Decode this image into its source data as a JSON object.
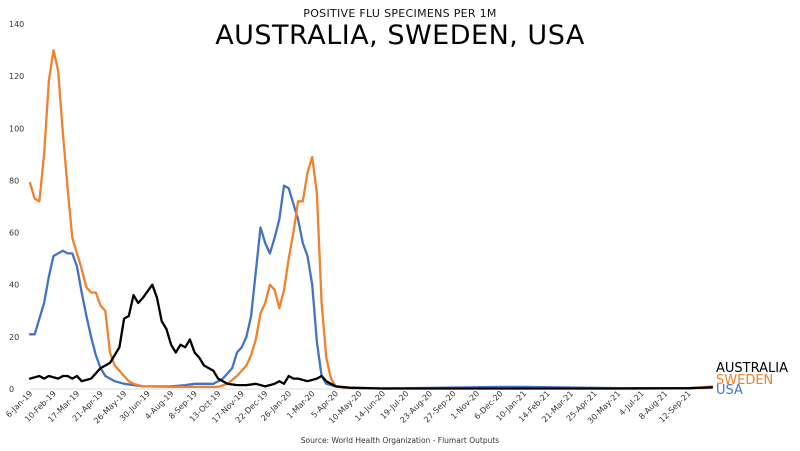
{
  "chart_data": {
    "type": "line",
    "subtitle": "POSITIVE FLU SPECIMENS PER 1M",
    "title": "AUSTRALIA, SWEDEN, USA",
    "source": "Source: World Health Organization - Flumart Outputs",
    "ylim": [
      0,
      140
    ],
    "yticks": [
      0,
      20,
      40,
      60,
      80,
      100,
      120,
      140
    ],
    "xlim": [
      "2019-01-06",
      "2021-10-17"
    ],
    "xtick_labels": [
      "6-Jan-19",
      "10-Feb-19",
      "17-Mar-19",
      "21-Apr-19",
      "26-May-19",
      "30-Jun-19",
      "4-Aug-19",
      "8-Sep-19",
      "13-Oct-19",
      "17-Nov-19",
      "22-Dec-19",
      "26-Jan-20",
      "1-Mar-20",
      "5-Apr-20",
      "10-May-20",
      "14-Jun-20",
      "19-Jul-20",
      "23-Aug-20",
      "27-Sep-20",
      "1-Nov-20",
      "6-Dec-20",
      "10-Jan-21",
      "14-Feb-21",
      "21-Mar-21",
      "25-Apr-21",
      "30-May-21",
      "4-Jul-21",
      "8-Aug-21",
      "12-Sep-21"
    ],
    "xtick_dates": [
      "2019-01-06",
      "2019-02-10",
      "2019-03-17",
      "2019-04-21",
      "2019-05-26",
      "2019-06-30",
      "2019-08-04",
      "2019-09-08",
      "2019-10-13",
      "2019-11-17",
      "2019-12-22",
      "2020-01-26",
      "2020-03-01",
      "2020-04-05",
      "2020-05-10",
      "2020-06-14",
      "2020-07-19",
      "2020-08-23",
      "2020-09-27",
      "2020-11-01",
      "2020-12-06",
      "2021-01-10",
      "2021-02-14",
      "2021-03-21",
      "2021-04-25",
      "2021-05-30",
      "2021-07-04",
      "2021-08-08",
      "2021-09-12"
    ],
    "series": [
      {
        "name": "AUSTRALIA",
        "color": "#000000",
        "points": [
          [
            "2019-01-06",
            4
          ],
          [
            "2019-01-20",
            5
          ],
          [
            "2019-01-27",
            4
          ],
          [
            "2019-02-03",
            5
          ],
          [
            "2019-02-17",
            4
          ],
          [
            "2019-02-24",
            5
          ],
          [
            "2019-03-03",
            5
          ],
          [
            "2019-03-10",
            4
          ],
          [
            "2019-03-17",
            5
          ],
          [
            "2019-03-24",
            3
          ],
          [
            "2019-04-07",
            4
          ],
          [
            "2019-04-14",
            6
          ],
          [
            "2019-04-21",
            8
          ],
          [
            "2019-05-05",
            10
          ],
          [
            "2019-05-19",
            16
          ],
          [
            "2019-05-26",
            27
          ],
          [
            "2019-06-02",
            28
          ],
          [
            "2019-06-09",
            36
          ],
          [
            "2019-06-16",
            33
          ],
          [
            "2019-06-23",
            35
          ],
          [
            "2019-07-07",
            40
          ],
          [
            "2019-07-14",
            35
          ],
          [
            "2019-07-21",
            26
          ],
          [
            "2019-07-28",
            23
          ],
          [
            "2019-08-04",
            17
          ],
          [
            "2019-08-11",
            14
          ],
          [
            "2019-08-18",
            17
          ],
          [
            "2019-08-25",
            16
          ],
          [
            "2019-09-01",
            19
          ],
          [
            "2019-09-08",
            14
          ],
          [
            "2019-09-15",
            12
          ],
          [
            "2019-09-22",
            9
          ],
          [
            "2019-10-06",
            7
          ],
          [
            "2019-10-13",
            4
          ],
          [
            "2019-10-20",
            3
          ],
          [
            "2019-10-27",
            2
          ],
          [
            "2019-11-10",
            1.5
          ],
          [
            "2019-11-24",
            1.5
          ],
          [
            "2019-12-08",
            2
          ],
          [
            "2019-12-22",
            1
          ],
          [
            "2020-01-05",
            2
          ],
          [
            "2020-01-12",
            3
          ],
          [
            "2020-01-19",
            2
          ],
          [
            "2020-01-26",
            5
          ],
          [
            "2020-02-02",
            4
          ],
          [
            "2020-02-09",
            4
          ],
          [
            "2020-02-23",
            3
          ],
          [
            "2020-03-08",
            4
          ],
          [
            "2020-03-15",
            5
          ],
          [
            "2020-03-22",
            3
          ],
          [
            "2020-04-05",
            1
          ],
          [
            "2020-04-26",
            0.5
          ],
          [
            "2020-06-14",
            0.2
          ],
          [
            "2020-09-27",
            0.2
          ],
          [
            "2021-01-10",
            0.2
          ],
          [
            "2021-05-30",
            0.2
          ],
          [
            "2021-09-12",
            0.3
          ],
          [
            "2021-10-17",
            0.6
          ]
        ]
      },
      {
        "name": "SWEDEN",
        "color": "#f0812f",
        "points": [
          [
            "2019-01-06",
            79
          ],
          [
            "2019-01-13",
            73
          ],
          [
            "2019-01-20",
            72
          ],
          [
            "2019-01-27",
            90
          ],
          [
            "2019-02-03",
            118
          ],
          [
            "2019-02-10",
            130
          ],
          [
            "2019-02-17",
            122
          ],
          [
            "2019-02-24",
            98
          ],
          [
            "2019-03-03",
            77
          ],
          [
            "2019-03-10",
            58
          ],
          [
            "2019-03-17",
            52
          ],
          [
            "2019-03-24",
            46
          ],
          [
            "2019-03-31",
            39
          ],
          [
            "2019-04-07",
            37
          ],
          [
            "2019-04-14",
            37
          ],
          [
            "2019-04-21",
            32
          ],
          [
            "2019-04-28",
            30
          ],
          [
            "2019-05-05",
            14
          ],
          [
            "2019-05-12",
            9
          ],
          [
            "2019-05-19",
            7
          ],
          [
            "2019-05-26",
            5
          ],
          [
            "2019-06-02",
            3
          ],
          [
            "2019-06-09",
            2
          ],
          [
            "2019-06-23",
            1
          ],
          [
            "2019-08-04",
            0.8
          ],
          [
            "2019-09-08",
            0.8
          ],
          [
            "2019-10-13",
            0.8
          ],
          [
            "2019-10-27",
            2
          ],
          [
            "2019-11-10",
            5
          ],
          [
            "2019-11-24",
            9
          ],
          [
            "2019-12-01",
            13
          ],
          [
            "2019-12-08",
            19
          ],
          [
            "2019-12-15",
            29
          ],
          [
            "2019-12-22",
            33
          ],
          [
            "2019-12-29",
            40
          ],
          [
            "2020-01-05",
            38
          ],
          [
            "2020-01-12",
            31
          ],
          [
            "2020-01-19",
            38
          ],
          [
            "2020-01-26",
            50
          ],
          [
            "2020-02-02",
            60
          ],
          [
            "2020-02-09",
            72
          ],
          [
            "2020-02-16",
            72
          ],
          [
            "2020-02-23",
            83
          ],
          [
            "2020-03-01",
            89
          ],
          [
            "2020-03-08",
            75
          ],
          [
            "2020-03-15",
            33
          ],
          [
            "2020-03-22",
            12
          ],
          [
            "2020-03-29",
            4
          ],
          [
            "2020-04-05",
            1
          ],
          [
            "2020-04-19",
            0.5
          ],
          [
            "2020-06-14",
            0.2
          ],
          [
            "2020-12-06",
            0.3
          ],
          [
            "2021-05-30",
            0.2
          ],
          [
            "2021-08-08",
            0.3
          ],
          [
            "2021-09-12",
            0.2
          ],
          [
            "2021-10-17",
            1
          ]
        ]
      },
      {
        "name": "USA",
        "color": "#4472c4",
        "points": [
          [
            "2019-01-06",
            21
          ],
          [
            "2019-01-13",
            21
          ],
          [
            "2019-01-20",
            27
          ],
          [
            "2019-01-27",
            33
          ],
          [
            "2019-02-03",
            43
          ],
          [
            "2019-02-10",
            51
          ],
          [
            "2019-02-17",
            52
          ],
          [
            "2019-02-24",
            53
          ],
          [
            "2019-03-03",
            52
          ],
          [
            "2019-03-10",
            52
          ],
          [
            "2019-03-17",
            47
          ],
          [
            "2019-03-24",
            37
          ],
          [
            "2019-03-31",
            28
          ],
          [
            "2019-04-07",
            20
          ],
          [
            "2019-04-14",
            13
          ],
          [
            "2019-04-21",
            8
          ],
          [
            "2019-04-28",
            5
          ],
          [
            "2019-05-05",
            4
          ],
          [
            "2019-05-12",
            3
          ],
          [
            "2019-05-26",
            2
          ],
          [
            "2019-06-23",
            1
          ],
          [
            "2019-08-04",
            1
          ],
          [
            "2019-08-25",
            1.5
          ],
          [
            "2019-09-08",
            2
          ],
          [
            "2019-09-22",
            2
          ],
          [
            "2019-10-06",
            2
          ],
          [
            "2019-10-20",
            4
          ],
          [
            "2019-11-03",
            8
          ],
          [
            "2019-11-10",
            14
          ],
          [
            "2019-11-17",
            16
          ],
          [
            "2019-11-24",
            20
          ],
          [
            "2019-12-01",
            28
          ],
          [
            "2019-12-08",
            45
          ],
          [
            "2019-12-15",
            62
          ],
          [
            "2019-12-22",
            56
          ],
          [
            "2019-12-29",
            52
          ],
          [
            "2020-01-05",
            58
          ],
          [
            "2020-01-12",
            65
          ],
          [
            "2020-01-19",
            78
          ],
          [
            "2020-01-26",
            77
          ],
          [
            "2020-02-02",
            71
          ],
          [
            "2020-02-09",
            65
          ],
          [
            "2020-02-16",
            56
          ],
          [
            "2020-02-23",
            51
          ],
          [
            "2020-03-01",
            40
          ],
          [
            "2020-03-08",
            18
          ],
          [
            "2020-03-15",
            5
          ],
          [
            "2020-03-22",
            2
          ],
          [
            "2020-04-05",
            1
          ],
          [
            "2020-04-26",
            0.4
          ],
          [
            "2020-06-14",
            0.2
          ],
          [
            "2020-12-06",
            0.8
          ],
          [
            "2021-01-10",
            0.8
          ],
          [
            "2021-05-30",
            0.3
          ],
          [
            "2021-09-12",
            0.3
          ],
          [
            "2021-10-17",
            0.6
          ]
        ]
      }
    ]
  }
}
